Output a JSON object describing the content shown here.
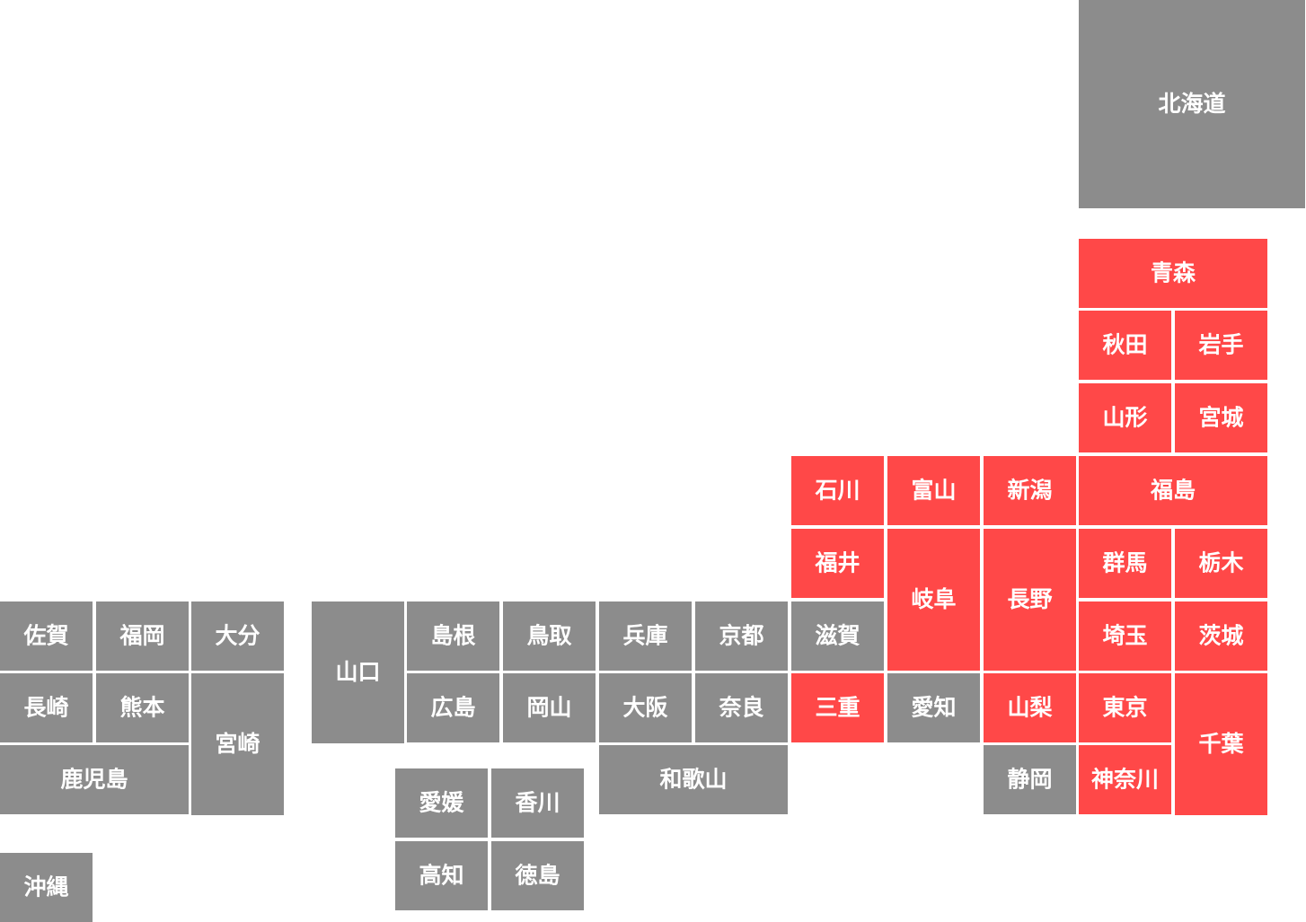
{
  "prefectures": [
    {
      "label": "北海道",
      "color": "#8c8c8c"
    },
    {
      "label": "青森",
      "color": "#ff4848"
    },
    {
      "label": "秋田",
      "color": "#ff4848"
    },
    {
      "label": "岩手",
      "color": "#ff4848"
    },
    {
      "label": "山形",
      "color": "#ff4848"
    },
    {
      "label": "宮城",
      "color": "#ff4848"
    },
    {
      "label": "石川",
      "color": "#ff4848"
    },
    {
      "label": "富山",
      "color": "#ff4848"
    },
    {
      "label": "新潟",
      "color": "#ff4848"
    },
    {
      "label": "福島",
      "color": "#ff4848"
    },
    {
      "label": "福井",
      "color": "#ff4848"
    },
    {
      "label": "岐阜",
      "color": "#ff4848"
    },
    {
      "label": "長野",
      "color": "#ff4848"
    },
    {
      "label": "群馬",
      "color": "#ff4848"
    },
    {
      "label": "栃木",
      "color": "#ff4848"
    },
    {
      "label": "滋賀",
      "color": "#8c8c8c"
    },
    {
      "label": "埼玉",
      "color": "#ff4848"
    },
    {
      "label": "茨城",
      "color": "#ff4848"
    },
    {
      "label": "三重",
      "color": "#ff4848"
    },
    {
      "label": "愛知",
      "color": "#8c8c8c"
    },
    {
      "label": "山梨",
      "color": "#ff4848"
    },
    {
      "label": "東京",
      "color": "#ff4848"
    },
    {
      "label": "千葉",
      "color": "#ff4848"
    },
    {
      "label": "静岡",
      "color": "#8c8c8c"
    },
    {
      "label": "神奈川",
      "color": "#ff4848"
    },
    {
      "label": "兵庫",
      "color": "#8c8c8c"
    },
    {
      "label": "京都",
      "color": "#8c8c8c"
    },
    {
      "label": "大阪",
      "color": "#8c8c8c"
    },
    {
      "label": "奈良",
      "color": "#8c8c8c"
    },
    {
      "label": "和歌山",
      "color": "#8c8c8c"
    },
    {
      "label": "島根",
      "color": "#8c8c8c"
    },
    {
      "label": "鳥取",
      "color": "#8c8c8c"
    },
    {
      "label": "広島",
      "color": "#8c8c8c"
    },
    {
      "label": "岡山",
      "color": "#8c8c8c"
    },
    {
      "label": "山口",
      "color": "#8c8c8c"
    },
    {
      "label": "愛媛",
      "color": "#8c8c8c"
    },
    {
      "label": "香川",
      "color": "#8c8c8c"
    },
    {
      "label": "高知",
      "color": "#8c8c8c"
    },
    {
      "label": "徳島",
      "color": "#8c8c8c"
    },
    {
      "label": "佐賀",
      "color": "#8c8c8c"
    },
    {
      "label": "福岡",
      "color": "#8c8c8c"
    },
    {
      "label": "大分",
      "color": "#8c8c8c"
    },
    {
      "label": "長崎",
      "color": "#8c8c8c"
    },
    {
      "label": "熊本",
      "color": "#8c8c8c"
    },
    {
      "label": "宮崎",
      "color": "#8c8c8c"
    },
    {
      "label": "鹿児島",
      "color": "#8c8c8c"
    },
    {
      "label": "沖縄",
      "color": "#8c8c8c"
    }
  ]
}
